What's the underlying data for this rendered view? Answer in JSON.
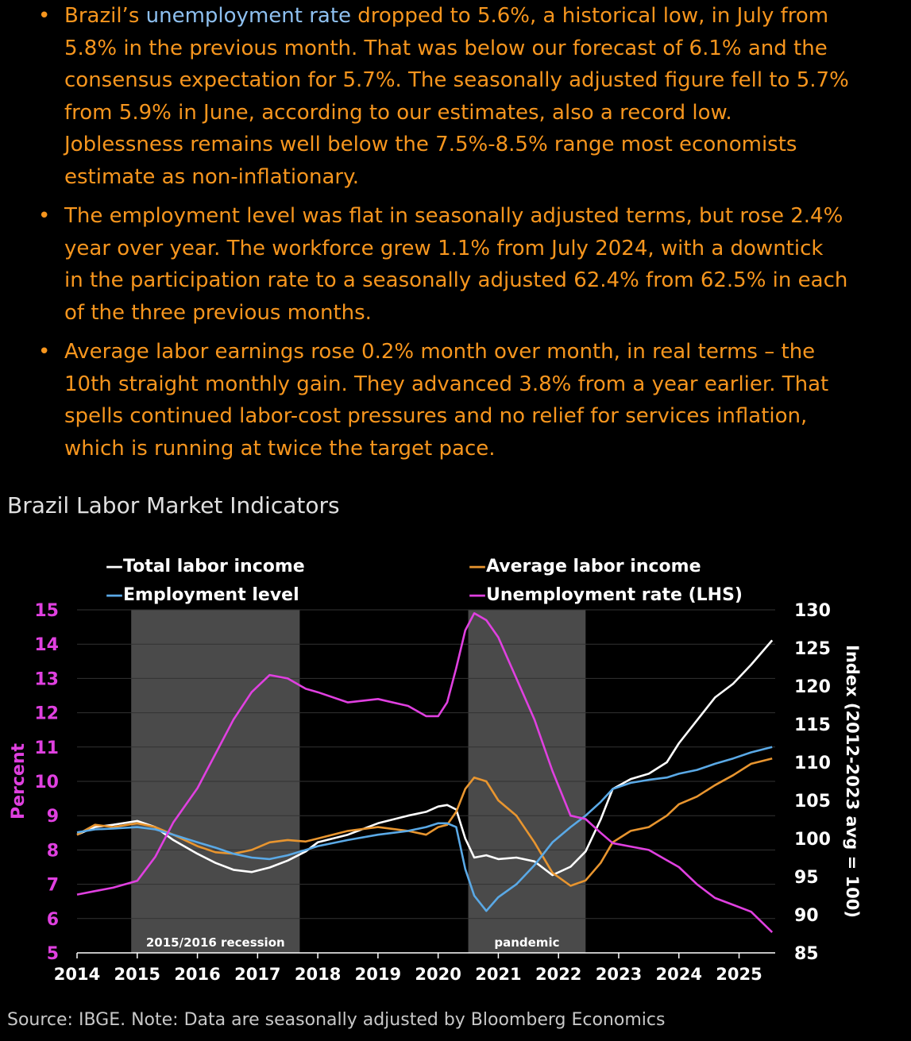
{
  "bullets": [
    {
      "prefix": "Brazil’s ",
      "link": "unemployment rate",
      "line1_rest": " dropped to 5.6%, a historical low, in July from",
      "lines": [
        "5.8% in the previous month. That was below our forecast of 6.1% and the",
        "consensus expectation for 5.7%. The seasonally adjusted figure fell to 5.7%",
        "from 5.9% in June, according to our estimates, also a record low.",
        "Joblessness remains well below the 7.5%-8.5% range most economists",
        "estimate as non-inflationary."
      ]
    },
    {
      "lines": [
        "The employment level was flat in seasonally adjusted terms, but rose 2.4%",
        "year over year. The workforce grew 1.1% from July 2024, with a downtick",
        "in the participation rate to a seasonally adjusted 62.4% from 62.5% in each",
        "of the three previous months."
      ]
    },
    {
      "lines": [
        "Average labor earnings rose 0.2% month over month, in real terms – the",
        "10th straight monthly gain. They advanced 3.8% from a year earlier. That",
        "spells continued labor-cost pressures and no relief for services inflation,",
        "which is running at twice the target pace."
      ]
    }
  ],
  "bullet_symbol": "•",
  "footer": {
    "source": "Source: IBGE. Note: Data are seasonally adjusted by Bloomberg Economics"
  },
  "colors": {
    "background": "#000000",
    "bullet_text": "#F7961E",
    "link": "#8EC0F0",
    "total_labor_income": "#FFFFFF",
    "average_labor_income": "#E8952F",
    "employment_level": "#5AA9E6",
    "unemployment_rate": "#E040E0",
    "shade": "#4A4A4A",
    "grid": "#333333"
  },
  "chart_data": {
    "type": "line",
    "title": "Brazil Labor Market Indicators",
    "ylabel_left": "Percent",
    "ylabel_right": "Index (2012-2023 avg = 100)",
    "ylim_left": [
      5,
      15
    ],
    "ylim_right": [
      85,
      130
    ],
    "left_ticks": [
      "5",
      "6",
      "7",
      "8",
      "9",
      "10",
      "11",
      "12",
      "13",
      "14",
      "15"
    ],
    "right_ticks": [
      "85",
      "90",
      "95",
      "100",
      "105",
      "110",
      "115",
      "120",
      "125",
      "130"
    ],
    "x_ticks": [
      "2014",
      "2015",
      "2016",
      "2017",
      "2018",
      "2019",
      "2020",
      "2021",
      "2022",
      "2023",
      "2024",
      "2025"
    ],
    "xlim": [
      2014,
      2025.6
    ],
    "shaded_periods": [
      {
        "label": "2015/2016 recession",
        "start": 2014.9,
        "end": 2017.7
      },
      {
        "label": "pandemic",
        "start": 2020.5,
        "end": 2022.45
      }
    ],
    "series": [
      {
        "name": "Total labor income",
        "legend": "—Total labor income",
        "axis": "right",
        "color_key": "total_labor_income",
        "x": [
          2014,
          2014.3,
          2014.6,
          2015,
          2015.3,
          2015.6,
          2016,
          2016.3,
          2016.6,
          2016.9,
          2017.2,
          2017.5,
          2017.8,
          2018,
          2018.5,
          2019,
          2019.5,
          2019.8,
          2020,
          2020.15,
          2020.3,
          2020.45,
          2020.6,
          2020.8,
          2021,
          2021.3,
          2021.6,
          2021.9,
          2022.2,
          2022.45,
          2022.7,
          2022.9,
          2023.2,
          2023.5,
          2023.8,
          2024,
          2024.3,
          2024.6,
          2024.9,
          2025.2,
          2025.55
        ],
        "values": [
          100.5,
          101.5,
          101.8,
          102.3,
          101.5,
          99.8,
          98.0,
          96.8,
          95.9,
          95.6,
          96.2,
          97.1,
          98.3,
          99.5,
          100.5,
          102.0,
          103.0,
          103.5,
          104.2,
          104.4,
          103.8,
          100.0,
          97.5,
          97.8,
          97.3,
          97.5,
          97.0,
          95.2,
          96.3,
          98.3,
          102.5,
          106.5,
          107.8,
          108.5,
          110.0,
          112.5,
          115.5,
          118.5,
          120.3,
          122.8,
          126.0
        ]
      },
      {
        "name": "Average labor income",
        "legend": "—Average labor income",
        "axis": "right",
        "color_key": "average_labor_income",
        "x": [
          2014,
          2014.3,
          2014.6,
          2015,
          2015.3,
          2015.6,
          2016,
          2016.3,
          2016.6,
          2016.9,
          2017.2,
          2017.5,
          2017.8,
          2018,
          2018.5,
          2019,
          2019.5,
          2019.8,
          2020,
          2020.15,
          2020.3,
          2020.45,
          2020.6,
          2020.8,
          2021,
          2021.3,
          2021.6,
          2021.9,
          2022.2,
          2022.45,
          2022.7,
          2022.9,
          2023.2,
          2023.5,
          2023.8,
          2024,
          2024.3,
          2024.6,
          2024.9,
          2025.2,
          2025.55
        ],
        "values": [
          100.5,
          101.8,
          101.5,
          102.0,
          101.5,
          100.5,
          99.0,
          98.2,
          98.0,
          98.5,
          99.5,
          99.8,
          99.6,
          100.0,
          101.0,
          101.5,
          101.0,
          100.5,
          101.5,
          101.8,
          103.5,
          106.5,
          108.0,
          107.5,
          105.0,
          103.0,
          99.5,
          95.5,
          93.8,
          94.5,
          96.8,
          99.5,
          101.0,
          101.5,
          103.0,
          104.5,
          105.5,
          107.0,
          108.3,
          109.8,
          110.5
        ]
      },
      {
        "name": "Employment level",
        "legend": "—Employment level",
        "axis": "right",
        "color_key": "employment_level",
        "x": [
          2014,
          2014.3,
          2014.6,
          2015,
          2015.3,
          2015.6,
          2016,
          2016.3,
          2016.6,
          2016.9,
          2017.2,
          2017.5,
          2017.8,
          2018,
          2018.5,
          2019,
          2019.5,
          2019.8,
          2020,
          2020.15,
          2020.3,
          2020.45,
          2020.6,
          2020.8,
          2021,
          2021.3,
          2021.6,
          2021.9,
          2022.2,
          2022.45,
          2022.7,
          2022.9,
          2023.2,
          2023.5,
          2023.8,
          2024,
          2024.3,
          2024.6,
          2024.9,
          2025.2,
          2025.55
        ],
        "values": [
          100.8,
          101.2,
          101.3,
          101.5,
          101.2,
          100.5,
          99.5,
          98.8,
          98.0,
          97.5,
          97.3,
          97.8,
          98.5,
          99.0,
          99.8,
          100.5,
          101.0,
          101.5,
          102.0,
          102.0,
          101.5,
          96.0,
          92.5,
          90.5,
          92.3,
          94.0,
          96.5,
          99.5,
          101.5,
          103.0,
          104.8,
          106.5,
          107.3,
          107.7,
          108.0,
          108.5,
          109.0,
          109.8,
          110.5,
          111.3,
          112.0
        ]
      },
      {
        "name": "Unemployment rate",
        "legend": "—Unemployment rate (LHS)",
        "axis": "left",
        "color_key": "unemployment_rate",
        "x": [
          2014,
          2014.3,
          2014.6,
          2015,
          2015.3,
          2015.6,
          2016,
          2016.3,
          2016.6,
          2016.9,
          2017.2,
          2017.5,
          2017.8,
          2018,
          2018.5,
          2019,
          2019.5,
          2019.8,
          2020,
          2020.15,
          2020.3,
          2020.45,
          2020.6,
          2020.8,
          2021,
          2021.3,
          2021.6,
          2021.9,
          2022.2,
          2022.45,
          2022.7,
          2022.9,
          2023.2,
          2023.5,
          2023.8,
          2024,
          2024.3,
          2024.6,
          2024.9,
          2025.2,
          2025.55
        ],
        "values": [
          6.7,
          6.8,
          6.9,
          7.1,
          7.8,
          8.8,
          9.8,
          10.8,
          11.8,
          12.6,
          13.1,
          13.0,
          12.7,
          12.6,
          12.3,
          12.4,
          12.2,
          11.9,
          11.9,
          12.3,
          13.3,
          14.4,
          14.9,
          14.7,
          14.2,
          13.0,
          11.8,
          10.3,
          9.0,
          8.9,
          8.5,
          8.2,
          8.1,
          8.0,
          7.7,
          7.5,
          7.0,
          6.6,
          6.4,
          6.2,
          5.6
        ]
      }
    ]
  }
}
